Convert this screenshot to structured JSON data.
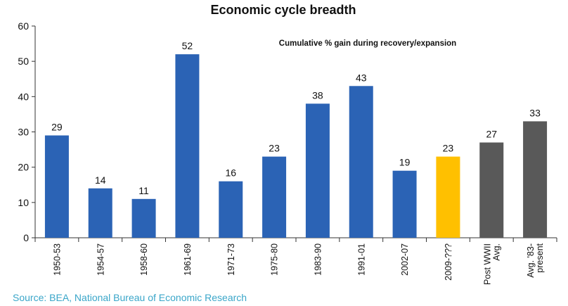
{
  "chart_data": {
    "type": "bar",
    "title": "Economic cycle breadth",
    "subtitle": "Cumulative % gain during recovery/expansion",
    "xlabel": "",
    "ylabel": "",
    "ylim": [
      0,
      60
    ],
    "yticks": [
      0,
      10,
      20,
      30,
      40,
      50,
      60
    ],
    "grid": false,
    "categories": [
      [
        "1950-53"
      ],
      [
        "1954-57"
      ],
      [
        "1958-60"
      ],
      [
        "1961-69"
      ],
      [
        "1971-73"
      ],
      [
        "1975-80"
      ],
      [
        "1983-90"
      ],
      [
        "1991-01"
      ],
      [
        "2002-07"
      ],
      [
        "2009-???"
      ],
      [
        "Post WWII",
        "Avg."
      ],
      [
        "Avg. '83-",
        "present"
      ]
    ],
    "values": [
      29,
      14,
      11,
      52,
      16,
      23,
      38,
      43,
      19,
      23,
      27,
      33
    ],
    "value_labels": [
      "29",
      "14",
      "11",
      "52",
      "16",
      "23",
      "38",
      "43",
      "19",
      "23",
      "27",
      "33"
    ],
    "bar_colors": [
      "#2b63b5",
      "#2b63b5",
      "#2b63b5",
      "#2b63b5",
      "#2b63b5",
      "#2b63b5",
      "#2b63b5",
      "#2b63b5",
      "#2b63b5",
      "#ffc000",
      "#595959",
      "#595959"
    ],
    "source": "Source: BEA, National Bureau of Economic Research"
  },
  "colors": {
    "bar_primary": "#2b63b5",
    "bar_highlight": "#ffc000",
    "bar_average": "#595959",
    "source_text": "#3aa6c9"
  }
}
